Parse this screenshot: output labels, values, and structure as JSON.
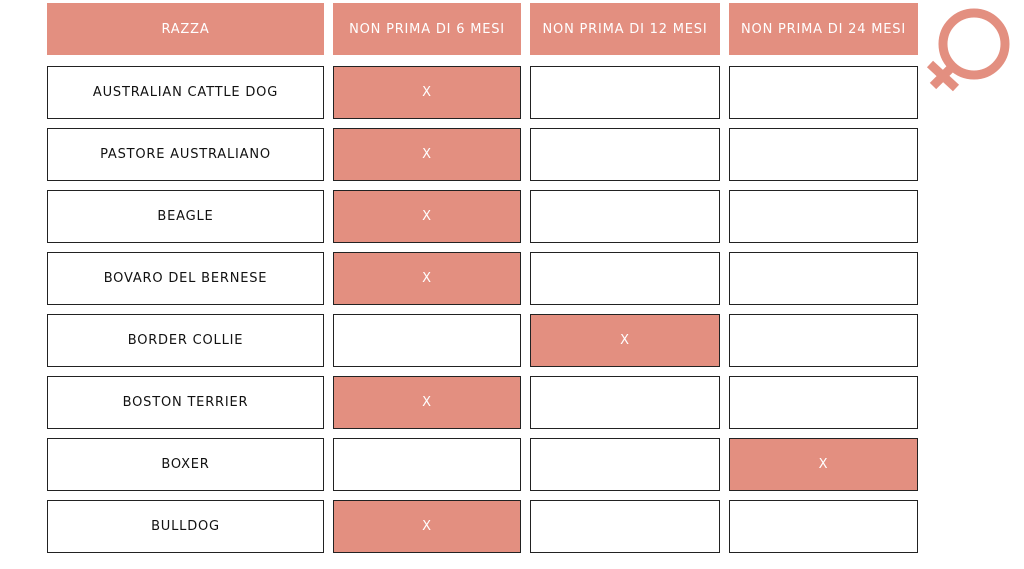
{
  "accent_color": "#e38f80",
  "icon": "female-symbol-icon",
  "headers": [
    "RAZZA",
    "NON PRIMA DI 6 MESI",
    "NON PRIMA DI 12 MESI",
    "NON PRIMA DI 24 MESI"
  ],
  "mark": "X",
  "rows": [
    {
      "breed": "AUSTRALIAN CATTLE DOG",
      "marked_column": 1
    },
    {
      "breed": "PASTORE AUSTRALIANO",
      "marked_column": 1
    },
    {
      "breed": "BEAGLE",
      "marked_column": 1
    },
    {
      "breed": "BOVARO DEL BERNESE",
      "marked_column": 1
    },
    {
      "breed": "BORDER COLLIE",
      "marked_column": 2
    },
    {
      "breed": "BOSTON TERRIER",
      "marked_column": 1
    },
    {
      "breed": "BOXER",
      "marked_column": 3
    },
    {
      "breed": "BULLDOG",
      "marked_column": 1
    }
  ]
}
